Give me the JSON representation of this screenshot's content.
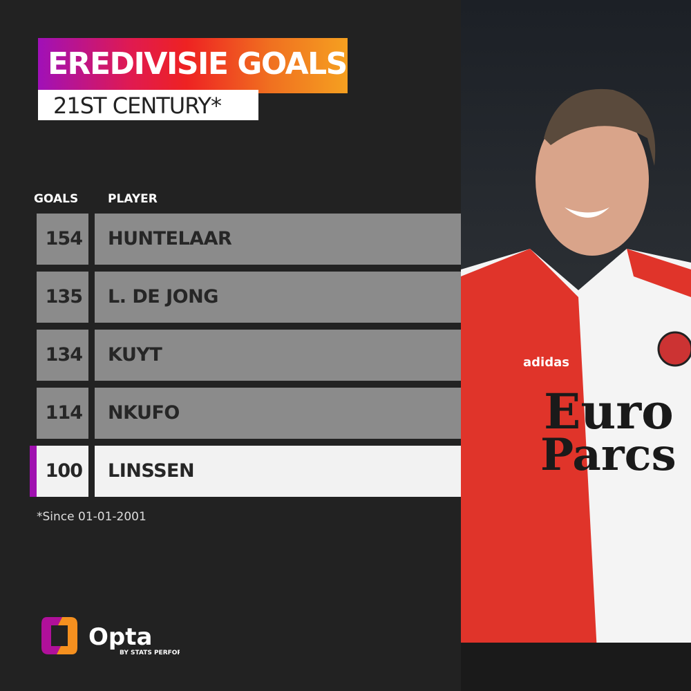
{
  "title": "EREDIVISIE GOALS",
  "subtitle": "21ST CENTURY*",
  "headers": {
    "goals": "GOALS",
    "player": "PLAYER"
  },
  "rows": [
    {
      "goals": "154",
      "player": "HUNTELAAR",
      "highlighted": false
    },
    {
      "goals": "135",
      "player": "L. DE JONG",
      "highlighted": false
    },
    {
      "goals": "134",
      "player": "KUYT",
      "highlighted": false
    },
    {
      "goals": "114",
      "player": "NKUFO",
      "highlighted": false
    },
    {
      "goals": "100",
      "player": "LINSSEN",
      "highlighted": true
    }
  ],
  "footnote": "*Since 01-01-2001",
  "logo": {
    "name": "Opta",
    "tagline": "BY STATS PERFORM"
  },
  "photo": {
    "shirt_sponsor": "Euro Parcs",
    "kit_brand": "adidas"
  },
  "colors": {
    "background": "#222222",
    "row": "#8b8b8b",
    "highlight_row": "#f2f2f2",
    "accent": "#a010b0",
    "gradient_start": "#a010b8",
    "gradient_end": "#f5a020"
  }
}
